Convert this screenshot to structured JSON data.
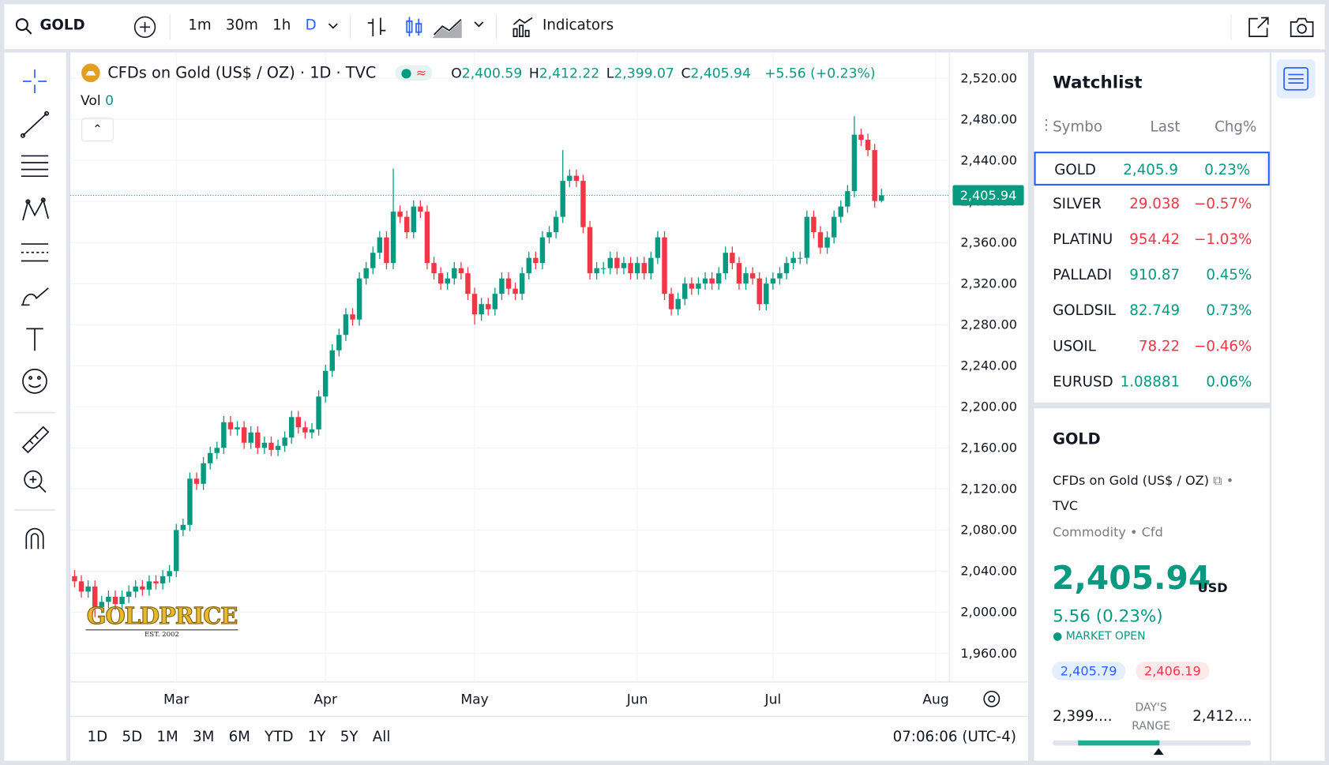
{
  "toolbar": {
    "symbol": "GOLD",
    "intervals": [
      "1m",
      "30m",
      "1h",
      "D"
    ],
    "indicators": "Indicators"
  },
  "chart_data": {
    "type": "candlestick",
    "title": "CFDs on Gold (US$ / OZ) · 1D · TVC",
    "ohlc_legend": [
      {
        "label": "O",
        "value": "2,400.59"
      },
      {
        "label": "H",
        "value": "2,412.22"
      },
      {
        "label": "L",
        "value": "2,399.07"
      },
      {
        "label": "C",
        "value": "2,405.94"
      }
    ],
    "change": "+5.56 (+0.23%)",
    "volume_label": "Vol",
    "volume": 0,
    "open": [
      2035,
      2030,
      2020,
      2025,
      2005,
      2010,
      2015,
      2008,
      2015,
      2020,
      2025,
      2022,
      2030,
      2028,
      2035,
      2040,
      2080,
      2085,
      2130,
      2125,
      2145,
      2155,
      2160,
      2185,
      2178,
      2180,
      2165,
      2175,
      2160,
      2165,
      2158,
      2162,
      2170,
      2190,
      2180,
      2175,
      2178,
      2210,
      2235,
      2255,
      2270,
      2290,
      2285,
      2325,
      2335,
      2350,
      2365,
      2340,
      2390,
      2385,
      2370,
      2395,
      2390,
      2340,
      2330,
      2320,
      2325,
      2335,
      2330,
      2310,
      2290,
      2300,
      2295,
      2310,
      2325,
      2315,
      2310,
      2330,
      2345,
      2340,
      2365,
      2370,
      2385,
      2420,
      2425,
      2420,
      2375,
      2330,
      2335,
      2335,
      2345,
      2335,
      2340,
      2330,
      2340,
      2330,
      2345,
      2365,
      2310,
      2295,
      2305,
      2320,
      2315,
      2320,
      2325,
      2320,
      2330,
      2350,
      2340,
      2320,
      2330,
      2325,
      2300,
      2320,
      2325,
      2330,
      2340,
      2345,
      2345,
      2385,
      2370,
      2355,
      2365,
      2385,
      2395,
      2410,
      2465,
      2460,
      2450,
      2400.59
    ],
    "high": [
      2041,
      2036,
      2031,
      2031,
      2016,
      2021,
      2021,
      2021,
      2026,
      2031,
      2031,
      2036,
      2036,
      2041,
      2046,
      2086,
      2091,
      2136,
      2136,
      2151,
      2161,
      2166,
      2191,
      2191,
      2186,
      2186,
      2181,
      2181,
      2171,
      2171,
      2168,
      2176,
      2196,
      2196,
      2186,
      2184,
      2216,
      2241,
      2261,
      2276,
      2296,
      2296,
      2331,
      2341,
      2356,
      2371,
      2371,
      2432,
      2396,
      2391,
      2401,
      2401,
      2396,
      2346,
      2336,
      2331,
      2341,
      2341,
      2336,
      2316,
      2306,
      2306,
      2316,
      2331,
      2331,
      2321,
      2336,
      2351,
      2351,
      2371,
      2376,
      2391,
      2450,
      2431,
      2431,
      2426,
      2381,
      2341,
      2341,
      2351,
      2351,
      2346,
      2346,
      2346,
      2346,
      2351,
      2371,
      2371,
      2316,
      2311,
      2326,
      2326,
      2326,
      2331,
      2331,
      2336,
      2356,
      2356,
      2346,
      2336,
      2336,
      2331,
      2326,
      2331,
      2336,
      2346,
      2351,
      2351,
      2391,
      2391,
      2376,
      2371,
      2391,
      2401,
      2416,
      2483,
      2471,
      2466,
      2456,
      2412.22
    ],
    "low": [
      2024,
      2014,
      2014,
      1995,
      1999,
      2004,
      2002,
      2002,
      2009,
      2014,
      2016,
      2016,
      2022,
      2022,
      2029,
      2034,
      2074,
      2079,
      2119,
      2119,
      2139,
      2149,
      2154,
      2172,
      2172,
      2159,
      2159,
      2154,
      2154,
      2152,
      2152,
      2156,
      2164,
      2174,
      2169,
      2169,
      2172,
      2204,
      2229,
      2249,
      2264,
      2279,
      2279,
      2319,
      2329,
      2344,
      2334,
      2334,
      2379,
      2364,
      2364,
      2384,
      2334,
      2324,
      2314,
      2314,
      2319,
      2324,
      2304,
      2280,
      2284,
      2289,
      2289,
      2304,
      2309,
      2304,
      2304,
      2324,
      2334,
      2334,
      2359,
      2364,
      2379,
      2414,
      2414,
      2369,
      2324,
      2324,
      2329,
      2329,
      2329,
      2329,
      2324,
      2324,
      2324,
      2324,
      2339,
      2304,
      2289,
      2289,
      2299,
      2309,
      2309,
      2314,
      2314,
      2314,
      2324,
      2334,
      2314,
      2314,
      2319,
      2294,
      2294,
      2314,
      2319,
      2324,
      2334,
      2339,
      2339,
      2364,
      2349,
      2349,
      2359,
      2379,
      2389,
      2404,
      2454,
      2444,
      2394,
      2399.07
    ],
    "close": [
      2030,
      2020,
      2025,
      2005,
      2010,
      2015,
      2008,
      2015,
      2020,
      2025,
      2022,
      2030,
      2028,
      2035,
      2040,
      2080,
      2085,
      2130,
      2125,
      2145,
      2155,
      2160,
      2185,
      2178,
      2180,
      2165,
      2175,
      2160,
      2165,
      2158,
      2162,
      2170,
      2190,
      2180,
      2175,
      2178,
      2210,
      2235,
      2255,
      2270,
      2290,
      2285,
      2325,
      2335,
      2350,
      2365,
      2340,
      2390,
      2385,
      2370,
      2395,
      2390,
      2340,
      2330,
      2320,
      2325,
      2335,
      2330,
      2310,
      2290,
      2300,
      2295,
      2310,
      2325,
      2315,
      2310,
      2330,
      2345,
      2340,
      2365,
      2370,
      2385,
      2420,
      2425,
      2420,
      2375,
      2330,
      2335,
      2335,
      2345,
      2335,
      2340,
      2330,
      2340,
      2330,
      2345,
      2365,
      2310,
      2295,
      2305,
      2320,
      2315,
      2320,
      2325,
      2320,
      2330,
      2350,
      2340,
      2320,
      2330,
      2325,
      2300,
      2320,
      2325,
      2330,
      2340,
      2345,
      2345,
      2385,
      2370,
      2355,
      2365,
      2385,
      2395,
      2410,
      2465,
      2460,
      2450,
      2400.38,
      2405.94
    ],
    "up_color": "#089981",
    "down_color": "#f23645",
    "grid": true,
    "ylim": [
      1932,
      2545
    ],
    "yticks": [
      {
        "value": 1960,
        "label": "1,960.00"
      },
      {
        "value": 2000,
        "label": "2,000.00"
      },
      {
        "value": 2040,
        "label": "2,040.00"
      },
      {
        "value": 2080,
        "label": "2,080.00"
      },
      {
        "value": 2120,
        "label": "2,120.00"
      },
      {
        "value": 2160,
        "label": "2,160.00"
      },
      {
        "value": 2200,
        "label": "2,200.00"
      },
      {
        "value": 2240,
        "label": "2,240.00"
      },
      {
        "value": 2280,
        "label": "2,280.00"
      },
      {
        "value": 2320,
        "label": "2,320.00"
      },
      {
        "value": 2360,
        "label": "2,360.00"
      },
      {
        "value": 2400,
        "label": "2,400.00"
      },
      {
        "value": 2440,
        "label": "2,440.00"
      },
      {
        "value": 2480,
        "label": "2,480.00"
      },
      {
        "value": 2520,
        "label": "2,520.00"
      }
    ],
    "xlim": [
      -0.625,
      129
    ],
    "xticks": [
      {
        "value": 15,
        "label": "Mar"
      },
      {
        "value": 37,
        "label": "Apr"
      },
      {
        "value": 59,
        "label": "May"
      },
      {
        "value": 83,
        "label": "Jun"
      },
      {
        "value": 103,
        "label": "Jul"
      },
      {
        "value": 127,
        "label": "Aug"
      }
    ],
    "last_price_label": "2,405.94"
  },
  "range_buttons": [
    "1D",
    "5D",
    "1M",
    "3M",
    "6M",
    "YTD",
    "1Y",
    "5Y",
    "All"
  ],
  "clock": "07:06:06 (UTC-4)",
  "logo": {
    "name": "GOLDPRICE",
    "est": "EST. 2002"
  },
  "watchlist": {
    "title": "Watchlist",
    "columns": [
      "Symbo",
      "Last",
      "Chg%"
    ],
    "rows": [
      {
        "symbol": "GOLD",
        "last": "2,405.9",
        "change": "0.23%",
        "color": "#089981"
      },
      {
        "symbol": "SILVER",
        "last": "29.038",
        "change": "−0.57%",
        "color": "#f23645"
      },
      {
        "symbol": "PLATINU",
        "last": "954.42",
        "change": "−1.03%",
        "color": "#f23645"
      },
      {
        "symbol": "PALLADI",
        "last": "910.87",
        "change": "0.45%",
        "color": "#089981"
      },
      {
        "symbol": "GOLDSIL",
        "last": "82.749",
        "change": "0.73%",
        "color": "#089981"
      },
      {
        "symbol": "USOIL",
        "last": "78.22",
        "change": "−0.46%",
        "color": "#f23645"
      },
      {
        "symbol": "EURUSD",
        "last": "1.08881",
        "change": "0.06%",
        "color": "#089981"
      }
    ]
  },
  "details": {
    "symbol": "GOLD",
    "description": "CFDs on Gold (US$ / OZ)",
    "exchange": "TVC",
    "type": "Commodity",
    "subtype": "Cfd",
    "price": "2,405.94",
    "currency": "USD",
    "change": "5.56 (0.23%)",
    "status": "MARKET OPEN",
    "bid": "2,405.79",
    "ask": "2,406.19",
    "day_low": "2,399....",
    "range_label": "DAY'S RANGE",
    "day_high": "2,412...."
  }
}
